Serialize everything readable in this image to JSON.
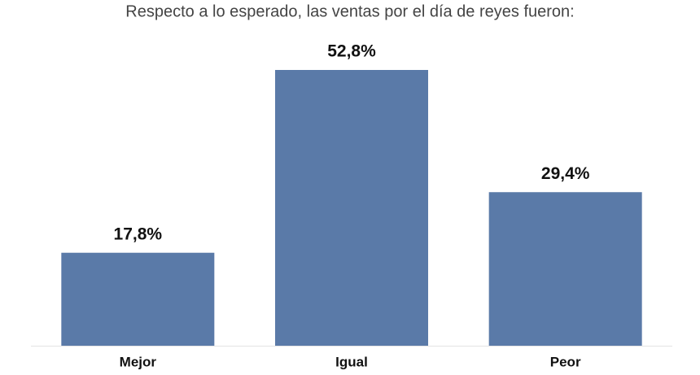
{
  "chart_data": {
    "type": "bar",
    "title": "Respecto a lo esperado, las ventas por el día de reyes fueron:",
    "categories": [
      "Mejor",
      "Igual",
      "Peor"
    ],
    "values": [
      17.8,
      52.8,
      29.4
    ],
    "value_labels": [
      "17,8%",
      "52,8%",
      "29,4%"
    ],
    "color": "#5a7aa8"
  }
}
